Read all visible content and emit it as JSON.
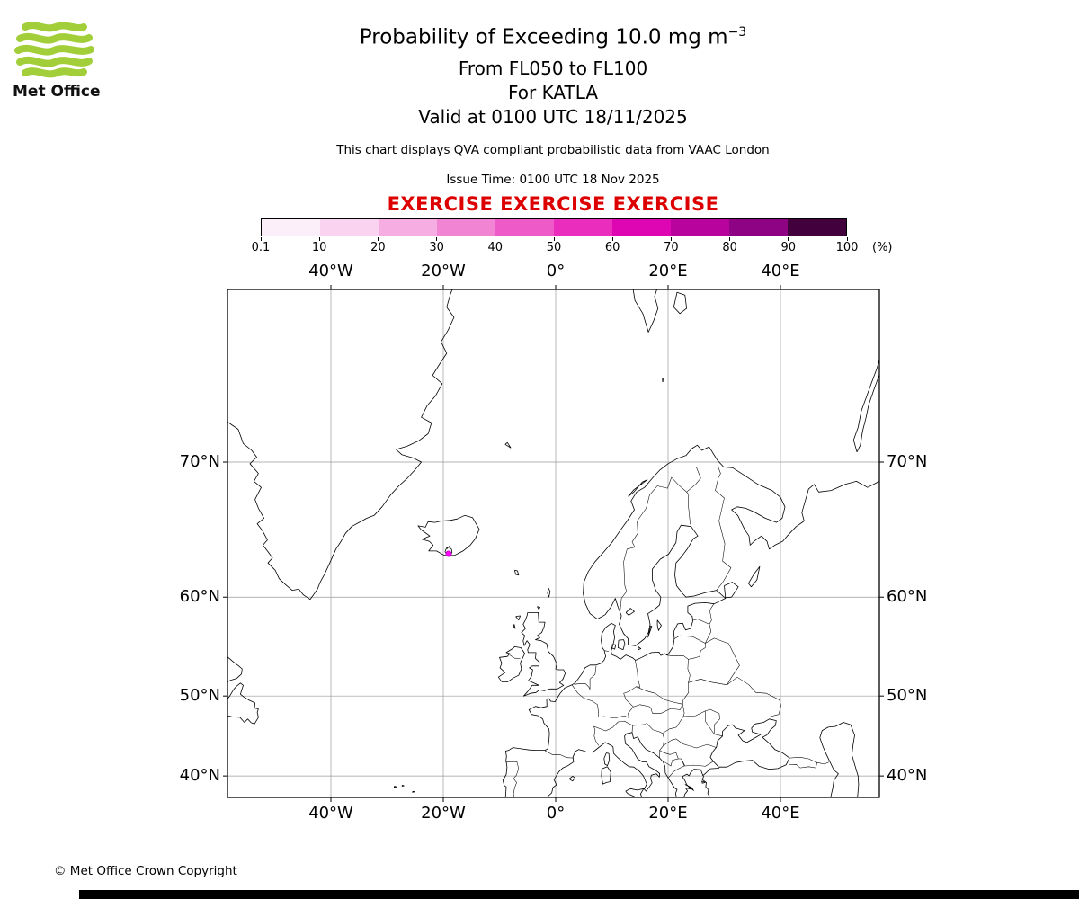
{
  "logo": {
    "text": "Met Office",
    "wave_color": "#a2ce3a"
  },
  "header": {
    "title_main": "Probability of Exceeding 10.0 mg m",
    "title_exp": "−3",
    "subtitle1": "From FL050 to FL100",
    "subtitle2": "For KATLA",
    "subtitle3": "Valid at 0100 UTC 18/11/2025",
    "qva_note": "This chart displays QVA compliant probabilistic data from VAAC London",
    "issue_time": "Issue Time: 0100 UTC 18 Nov 2025",
    "exercise": "EXERCISE EXERCISE EXERCISE",
    "exercise_color": "#dd0000"
  },
  "colorbar": {
    "unit": "(%)",
    "boundary_labels": [
      "0.1",
      "10",
      "20",
      "30",
      "40",
      "50",
      "60",
      "70",
      "80",
      "90",
      "100"
    ],
    "segment_colors": [
      "#fceff9",
      "#f9d3ef",
      "#f6ade1",
      "#f285d3",
      "#ee5ac7",
      "#ea2dbc",
      "#de06b3",
      "#b8049c",
      "#8e0384",
      "#42013c"
    ]
  },
  "map": {
    "lon_labels": [
      {
        "text": "40°W",
        "lon": -40
      },
      {
        "text": "20°W",
        "lon": -20
      },
      {
        "text": "0°",
        "lon": 0
      },
      {
        "text": "20°E",
        "lon": 20
      },
      {
        "text": "40°E",
        "lon": 40
      }
    ],
    "lat_labels": [
      {
        "text": "70°N",
        "lat": 70
      },
      {
        "text": "60°N",
        "lat": 60
      },
      {
        "text": "50°N",
        "lat": 50
      },
      {
        "text": "40°N",
        "lat": 40
      }
    ],
    "hazard_color": "#ff00ff",
    "volcano_name": "KATLA"
  },
  "footer": {
    "copyright": "© Met Office Crown Copyright"
  }
}
